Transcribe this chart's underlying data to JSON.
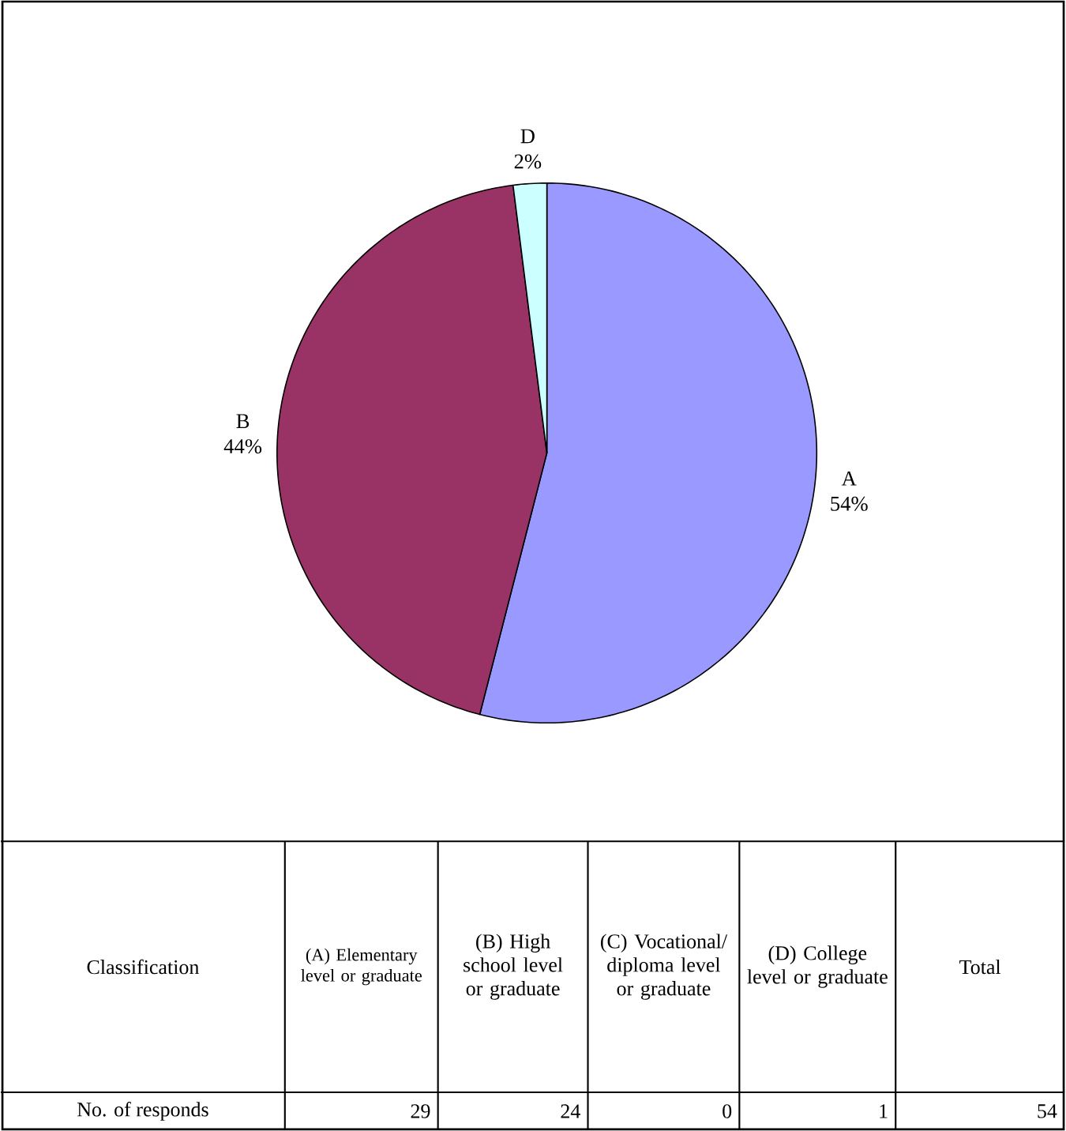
{
  "chart_data": [
    {
      "type": "pie",
      "categories": [
        "A",
        "B",
        "D"
      ],
      "values": [
        54,
        44,
        2
      ],
      "value_labels": [
        "54%",
        "44%",
        "2%"
      ],
      "colors": [
        "#9999ff",
        "#993366",
        "#ccffff"
      ]
    },
    {
      "type": "other",
      "annotations": [
        "Classification",
        "No. of responds"
      ],
      "categories": [
        "(A) Elementary level or graduate",
        "(B) High school level or graduate",
        "(C) Vocational/ diploma level or graduate",
        "(D) College level or graduate",
        "Total"
      ],
      "values": [
        29,
        24,
        0,
        1,
        54
      ],
      "data_labels": true
    }
  ]
}
